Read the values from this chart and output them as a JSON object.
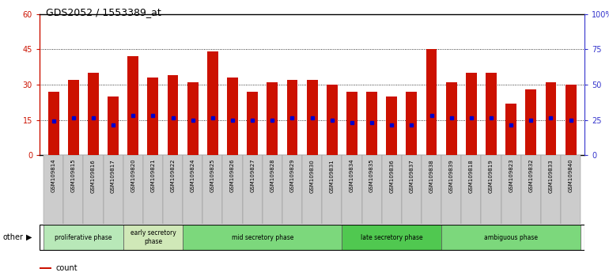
{
  "title": "GDS2052 / 1553389_at",
  "samples": [
    "GSM109814",
    "GSM109815",
    "GSM109816",
    "GSM109817",
    "GSM109820",
    "GSM109821",
    "GSM109822",
    "GSM109824",
    "GSM109825",
    "GSM109826",
    "GSM109827",
    "GSM109828",
    "GSM109829",
    "GSM109830",
    "GSM109831",
    "GSM109834",
    "GSM109835",
    "GSM109836",
    "GSM109837",
    "GSM109838",
    "GSM109839",
    "GSM109818",
    "GSM109819",
    "GSM109823",
    "GSM109832",
    "GSM109833",
    "GSM109840"
  ],
  "bar_heights": [
    27,
    32,
    35,
    25,
    42,
    33,
    34,
    31,
    44,
    33,
    27,
    31,
    32,
    32,
    30,
    27,
    27,
    25,
    27,
    45,
    31,
    35,
    35,
    22,
    28,
    31,
    30
  ],
  "blue_dots": [
    14.5,
    16,
    16,
    13,
    17,
    17,
    16,
    15,
    16,
    15,
    15,
    15,
    16,
    16,
    15,
    14,
    14,
    13,
    13,
    17,
    16,
    16,
    16,
    13,
    15,
    16,
    15
  ],
  "phases": [
    {
      "label": "proliferative phase",
      "start": 0,
      "end": 4,
      "color": "#b8e8b8"
    },
    {
      "label": "early secretory\nphase",
      "start": 4,
      "end": 7,
      "color": "#d0e8b8"
    },
    {
      "label": "mid secretory phase",
      "start": 7,
      "end": 15,
      "color": "#7cd87c"
    },
    {
      "label": "late secretory phase",
      "start": 15,
      "end": 20,
      "color": "#50c850"
    },
    {
      "label": "ambiguous phase",
      "start": 20,
      "end": 27,
      "color": "#7cd87c"
    }
  ],
  "bar_color": "#cc1100",
  "dot_color": "#0000cc",
  "ylim_left": [
    0,
    60
  ],
  "ylim_right": [
    0,
    100
  ],
  "yticks_left": [
    0,
    15,
    30,
    45,
    60
  ],
  "yticks_right": [
    0,
    25,
    50,
    75,
    100
  ],
  "ytick_labels_right": [
    "0",
    "25",
    "50",
    "75",
    "100%"
  ],
  "plot_bg": "#ffffff",
  "xtick_bg": "#d0d0d0",
  "other_label": "other"
}
